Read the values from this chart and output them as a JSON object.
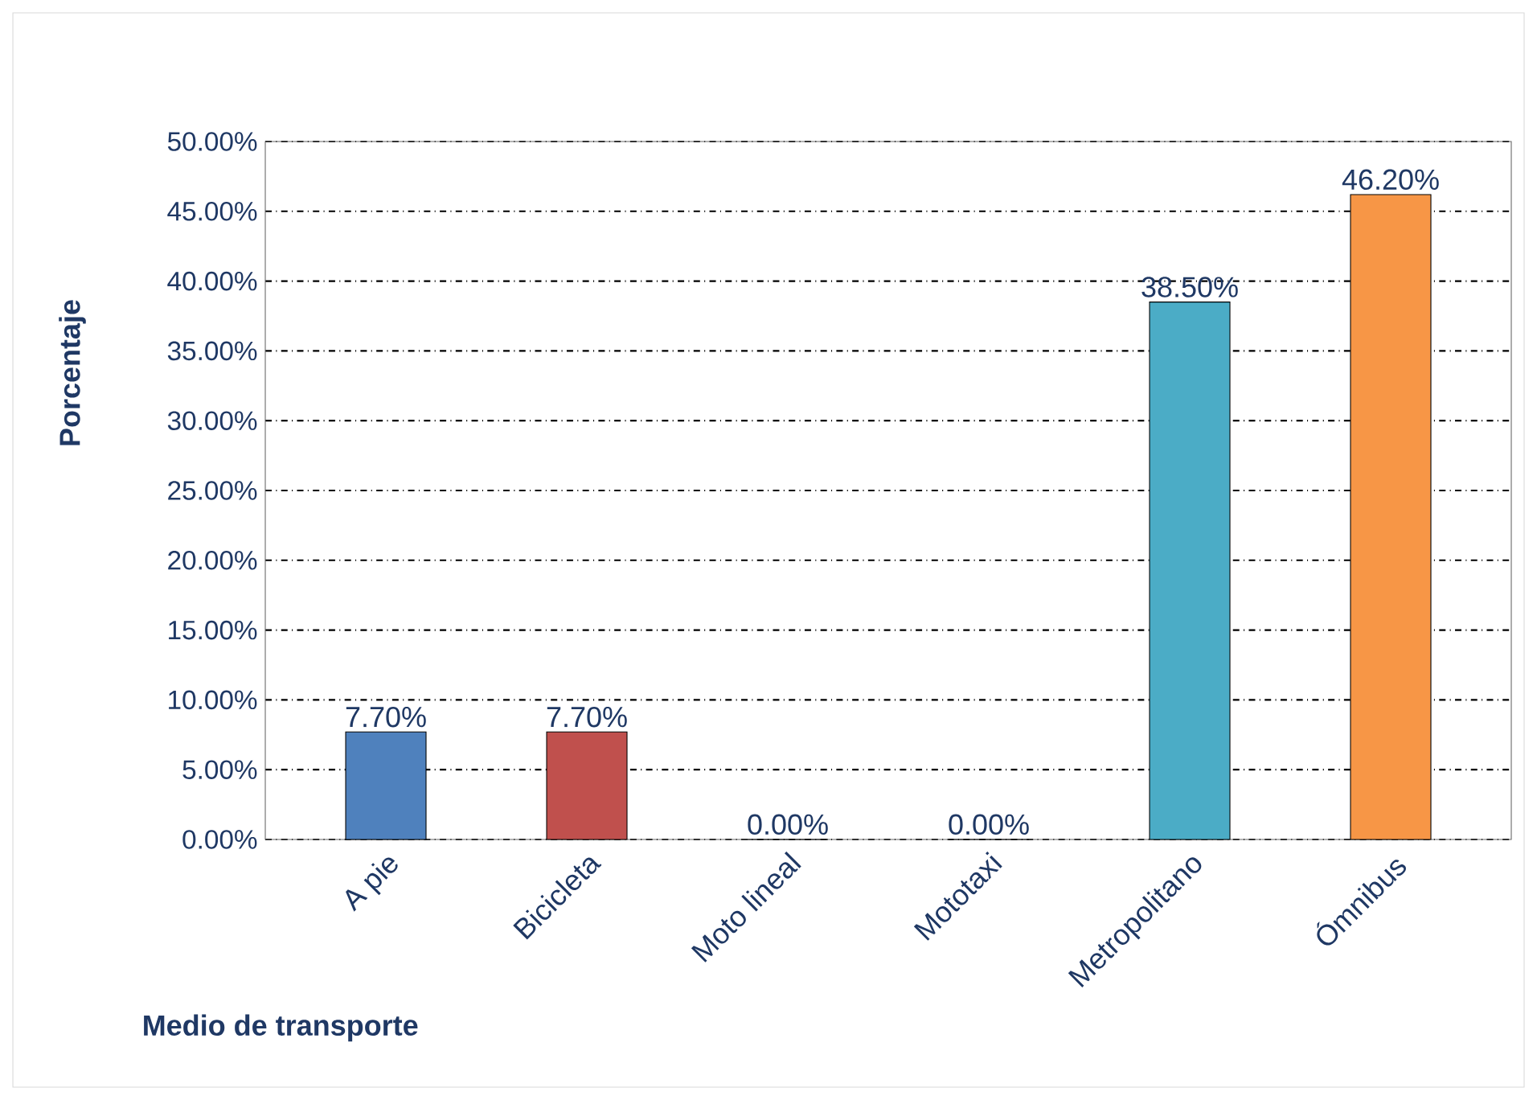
{
  "chart_data": {
    "type": "bar",
    "xlabel": "Medio de transporte",
    "ylabel": "Porcentaje",
    "categories": [
      "A pie",
      "Bicicleta",
      "Moto lineal",
      "Mototaxi",
      "Metropolitano",
      "Ómnibus"
    ],
    "values": [
      7.7,
      7.7,
      0,
      0,
      38.5,
      46.2
    ],
    "colors": [
      "#4f81bd",
      "#c0504d",
      "#9bbb59",
      "#8064a2",
      "#4bacc6",
      "#f79646"
    ],
    "value_labels": [
      "7.70%",
      "7.70%",
      "0.00%",
      "0.00%",
      "38.50%",
      "46.20%"
    ],
    "ylim": [
      0,
      50
    ],
    "yticks": [
      {
        "value": 0,
        "label": "0.00%"
      },
      {
        "value": 5,
        "label": "5.00%"
      },
      {
        "value": 10,
        "label": "10.00%"
      },
      {
        "value": 15,
        "label": "15.00%"
      },
      {
        "value": 20,
        "label": "20.00%"
      },
      {
        "value": 25,
        "label": "25.00%"
      },
      {
        "value": 30,
        "label": "30.00%"
      },
      {
        "value": 35,
        "label": "35.00%"
      },
      {
        "value": 40,
        "label": "40.00%"
      },
      {
        "value": 45,
        "label": "45.00%"
      },
      {
        "value": 50,
        "label": "50.00%"
      }
    ],
    "grid": "y"
  }
}
